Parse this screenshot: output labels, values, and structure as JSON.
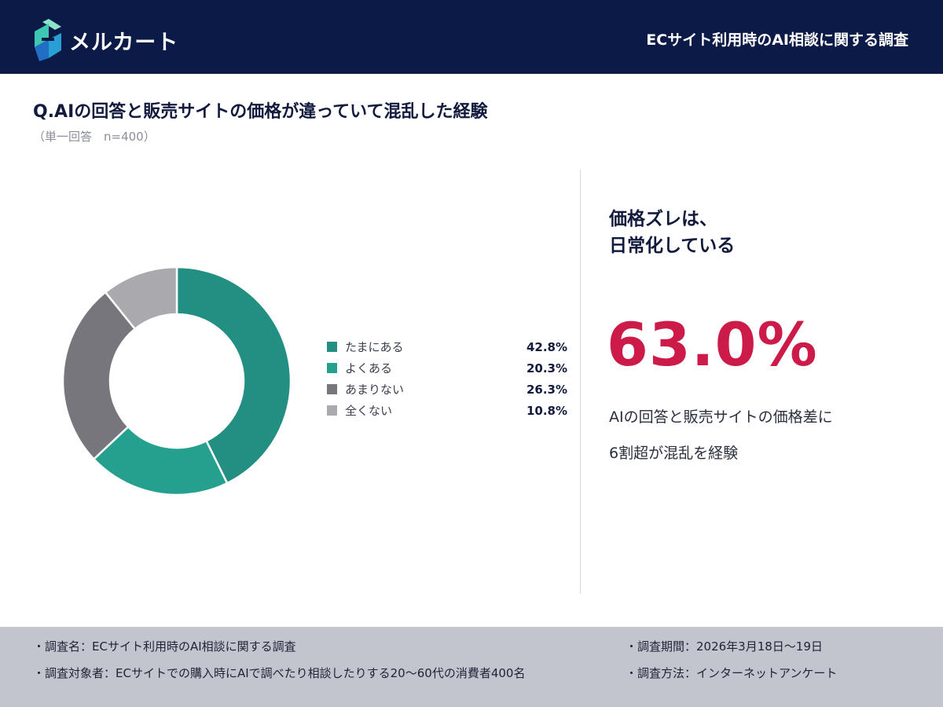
{
  "header": {
    "brand": "メルカート",
    "survey_title": "ECサイト利用時のAI相談に関する調査"
  },
  "question": {
    "title": "Q.AIの回答と販売サイトの価格が違っていて混乱した経験",
    "subtitle": "（単一回答　n=400）"
  },
  "chart_data": {
    "type": "pie",
    "donut": true,
    "categories": [
      "たまにある",
      "よくある",
      "あまりない",
      "全くない"
    ],
    "values": [
      42.8,
      20.3,
      26.3,
      10.8
    ],
    "value_labels": [
      "42.8%",
      "20.3%",
      "26.3%",
      "10.8%"
    ],
    "colors": [
      "#238f83",
      "#26a08e",
      "#76767c",
      "#aaa9ad"
    ],
    "legend": "right"
  },
  "highlight": {
    "headline": "価格ズレは、\n日常化している",
    "value": "63.0%",
    "description_line1": "AIの回答と販売サイトの価格差に",
    "description_line2": "6割超が混乱を経験"
  },
  "footer": {
    "survey_name": "・調査名：ECサイト利用時のAI相談に関する調査",
    "target": "・調査対象者：ECサイトでの購入時にAIで調べたり相談したりする20〜60代の消費者400名",
    "period": "・調査期間：2026年3月18日〜19日",
    "method": "・調査方法：インターネットアンケート"
  }
}
